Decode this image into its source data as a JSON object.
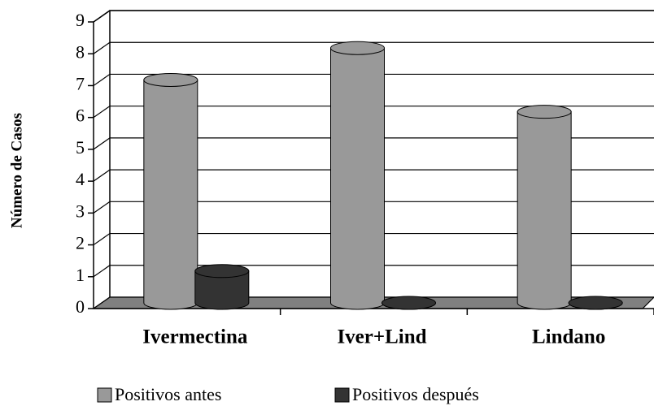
{
  "chart_data": {
    "type": "bar3d",
    "y_label": "Número de Casos",
    "categories": [
      "Ivermectina",
      "Iver+Lind",
      "Lindano"
    ],
    "series": [
      {
        "name": "Positivos antes",
        "color": "#999999",
        "values": [
          7,
          8,
          6
        ]
      },
      {
        "name": "Positivos después",
        "color": "#333333",
        "values": [
          1,
          0,
          0
        ]
      }
    ],
    "ylim": [
      0,
      9
    ],
    "yticks": [
      0,
      1,
      2,
      3,
      4,
      5,
      6,
      7,
      8,
      9
    ],
    "grid": true,
    "legend": "bottom"
  }
}
